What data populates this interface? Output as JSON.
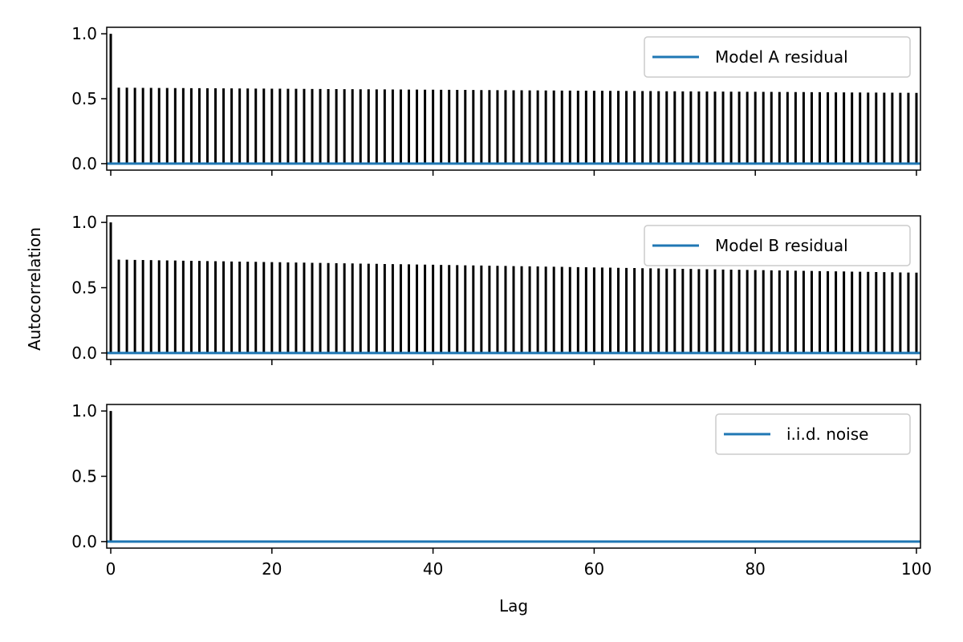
{
  "chart_data": {
    "type": "bar",
    "xlabel": "Lag",
    "ylabel": "Autocorrelation",
    "xlim": [
      -0.5,
      100.5
    ],
    "ylim": [
      -0.05,
      1.05
    ],
    "xticks": [
      "0",
      "20",
      "40",
      "60",
      "80",
      "100"
    ],
    "yticks": [
      "0.0",
      "0.5",
      "1.0"
    ],
    "grid": false,
    "legend_location": "upper right",
    "colors": {
      "stem": "#000000",
      "baseline": "#1f77b4"
    },
    "panels": [
      {
        "legend": "Model A residual",
        "lag0": 1.0,
        "lag1": 0.585,
        "lag100": 0.545
      },
      {
        "legend": "Model B residual",
        "lag0": 1.0,
        "lag1": 0.715,
        "lag100": 0.615
      },
      {
        "legend": "i.i.d. noise",
        "lag0": 1.0,
        "lag1": 0.0,
        "lag100": 0.0
      }
    ]
  }
}
